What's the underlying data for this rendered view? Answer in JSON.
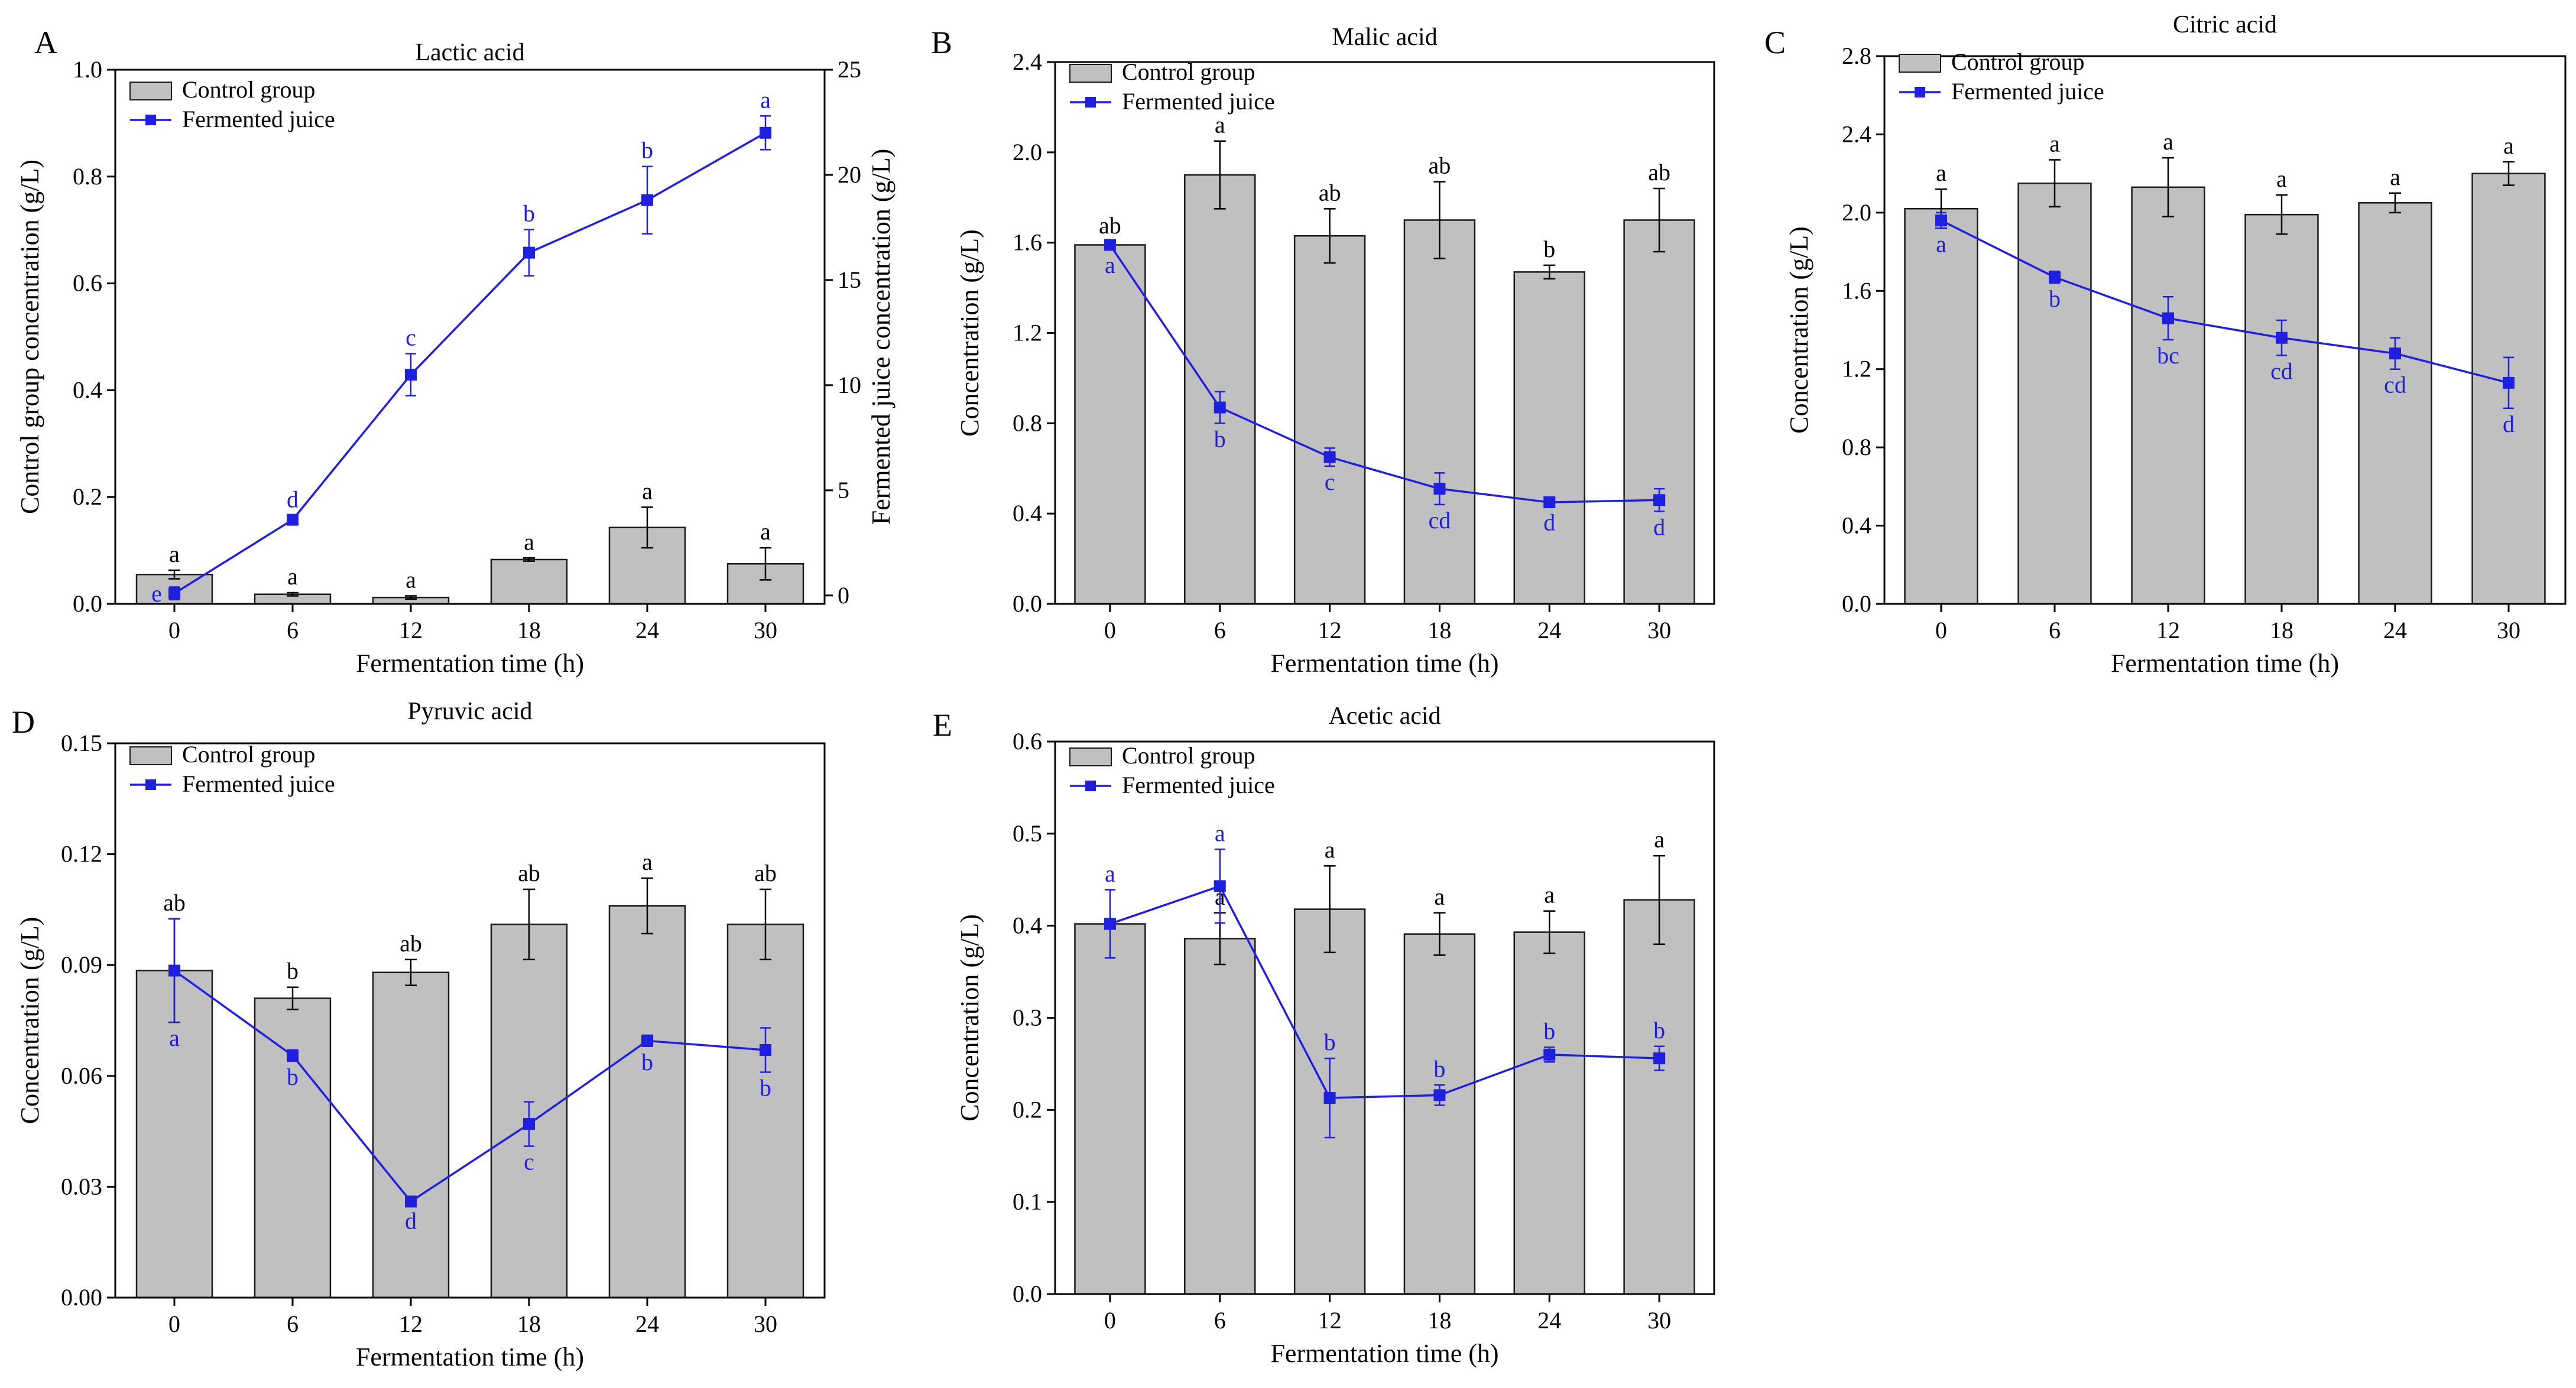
{
  "figure": {
    "series_names": [
      "Control group",
      "Fermented juice"
    ],
    "colors": {
      "bar_fill": "#c0c0c0",
      "bar_stroke": "#1a1a1a",
      "line": "#1f1fe0",
      "axis": "#000000",
      "control_letter": "#000000",
      "juice_letter": "#1f1fe0"
    }
  },
  "chart_data": [
    {
      "id": "A",
      "type": "bar+line",
      "panel_label": "A",
      "title": "Lactic acid",
      "xlabel": "Fermentation time (h)",
      "ylabel": "Control group concentration (g/L)",
      "y2label": "Fermented juice concentration (g/L)",
      "categories": [
        "0",
        "6",
        "12",
        "18",
        "24",
        "30"
      ],
      "ylim": [
        0,
        1.0
      ],
      "yticks": [
        "0.0",
        "0.2",
        "0.4",
        "0.6",
        "0.8",
        "1.0"
      ],
      "y2lim": [
        -0.4,
        25
      ],
      "y2ticks": [
        "0",
        "5",
        "10",
        "15",
        "20",
        "25"
      ],
      "series": [
        {
          "name": "Control group",
          "kind": "bar",
          "axis": "left",
          "values": [
            0.055,
            0.018,
            0.012,
            0.083,
            0.143,
            0.075
          ],
          "errors": [
            0.008,
            0.003,
            0.003,
            0.003,
            0.038,
            0.03
          ],
          "letters": [
            "a",
            "a",
            "a",
            "a",
            "a",
            "a"
          ]
        },
        {
          "name": "Fermented juice",
          "kind": "line",
          "axis": "right",
          "values": [
            0.1,
            3.6,
            10.5,
            16.3,
            18.8,
            22.0
          ],
          "errors": [
            0.3,
            0.2,
            1.0,
            1.1,
            1.6,
            0.8
          ],
          "letters": [
            "e",
            "d",
            "c",
            "b",
            "b",
            "a"
          ],
          "letter_pos": [
            "inside",
            "above",
            "above",
            "above",
            "above",
            "above"
          ]
        }
      ]
    },
    {
      "id": "B",
      "type": "bar+line",
      "panel_label": "B",
      "title": "Malic acid",
      "xlabel": "Fermentation time (h)",
      "ylabel": "Concentration (g/L)",
      "categories": [
        "0",
        "6",
        "12",
        "18",
        "24",
        "30"
      ],
      "ylim": [
        0,
        2.4
      ],
      "yticks": [
        "0.0",
        "0.4",
        "0.8",
        "1.2",
        "1.6",
        "2.0",
        "2.4"
      ],
      "series": [
        {
          "name": "Control group",
          "kind": "bar",
          "values": [
            1.59,
            1.9,
            1.63,
            1.7,
            1.47,
            1.7
          ],
          "errors": [
            0.015,
            0.15,
            0.12,
            0.17,
            0.03,
            0.14
          ],
          "letters": [
            "ab",
            "a",
            "ab",
            "ab",
            "b",
            "ab"
          ]
        },
        {
          "name": "Fermented juice",
          "kind": "line",
          "values": [
            1.59,
            0.87,
            0.65,
            0.51,
            0.45,
            0.46
          ],
          "errors": [
            0.02,
            0.07,
            0.04,
            0.07,
            0.02,
            0.05
          ],
          "letters": [
            "a",
            "b",
            "c",
            "cd",
            "d",
            "d"
          ],
          "letter_pos": [
            "below",
            "below",
            "below",
            "below",
            "below",
            "below"
          ]
        }
      ]
    },
    {
      "id": "C",
      "type": "bar+line",
      "panel_label": "C",
      "title": "Citric acid",
      "xlabel": "Fermentation time (h)",
      "ylabel": "Concentration (g/L)",
      "categories": [
        "0",
        "6",
        "12",
        "18",
        "24",
        "30"
      ],
      "ylim": [
        0,
        2.8
      ],
      "yticks": [
        "0.0",
        "0.4",
        "0.8",
        "1.2",
        "1.6",
        "2.0",
        "2.4",
        "2.8"
      ],
      "series": [
        {
          "name": "Control group",
          "kind": "bar",
          "values": [
            2.02,
            2.15,
            2.13,
            1.99,
            2.05,
            2.2
          ],
          "errors": [
            0.1,
            0.12,
            0.15,
            0.1,
            0.05,
            0.06
          ],
          "letters": [
            "a",
            "a",
            "a",
            "a",
            "a",
            "a"
          ]
        },
        {
          "name": "Fermented juice",
          "kind": "line",
          "values": [
            1.96,
            1.67,
            1.46,
            1.36,
            1.28,
            1.13
          ],
          "errors": [
            0.04,
            0.03,
            0.11,
            0.09,
            0.08,
            0.13
          ],
          "letters": [
            "a",
            "b",
            "bc",
            "cd",
            "cd",
            "d"
          ],
          "letter_pos": [
            "below",
            "below",
            "below",
            "below",
            "below",
            "below"
          ]
        }
      ]
    },
    {
      "id": "D",
      "type": "bar+line",
      "panel_label": "D",
      "title": "Pyruvic acid",
      "xlabel": "Fermentation time (h)",
      "ylabel": "Concentration (g/L)",
      "categories": [
        "0",
        "6",
        "12",
        "18",
        "24",
        "30"
      ],
      "ylim": [
        0,
        0.15
      ],
      "yticks": [
        "0.00",
        "0.03",
        "0.06",
        "0.09",
        "0.12",
        "0.15"
      ],
      "series": [
        {
          "name": "Control group",
          "kind": "bar",
          "values": [
            0.0885,
            0.081,
            0.088,
            0.101,
            0.106,
            0.101
          ],
          "errors": [
            0.014,
            0.003,
            0.0035,
            0.0095,
            0.0075,
            0.0095
          ],
          "letters": [
            "ab",
            "b",
            "ab",
            "ab",
            "a",
            "ab"
          ]
        },
        {
          "name": "Fermented juice",
          "kind": "line",
          "values": [
            0.0885,
            0.0655,
            0.026,
            0.047,
            0.0695,
            0.067
          ],
          "errors": [
            0.014,
            0.0015,
            0.001,
            0.006,
            0.0015,
            0.006
          ],
          "letters": [
            "a",
            "b",
            "d",
            "c",
            "b",
            "b"
          ],
          "letter_pos": [
            "below",
            "below",
            "below",
            "below",
            "below",
            "below"
          ]
        }
      ]
    },
    {
      "id": "E",
      "type": "bar+line",
      "panel_label": "E",
      "title": "Acetic acid",
      "xlabel": "Fermentation time (h)",
      "ylabel": "Concentration (g/L)",
      "categories": [
        "0",
        "6",
        "12",
        "18",
        "24",
        "30"
      ],
      "ylim": [
        0,
        0.6
      ],
      "yticks": [
        "0.0",
        "0.1",
        "0.2",
        "0.3",
        "0.4",
        "0.5",
        "0.6"
      ],
      "series": [
        {
          "name": "Control group",
          "kind": "bar",
          "values": [
            0.402,
            0.386,
            0.418,
            0.391,
            0.393,
            0.428
          ],
          "errors": [
            0.0,
            0.028,
            0.047,
            0.023,
            0.023,
            0.048
          ],
          "letters": [
            "",
            "a",
            "a",
            "a",
            "a",
            "a"
          ]
        },
        {
          "name": "Fermented juice",
          "kind": "line",
          "values": [
            0.402,
            0.443,
            0.213,
            0.216,
            0.26,
            0.256
          ],
          "errors": [
            0.037,
            0.04,
            0.043,
            0.011,
            0.008,
            0.013
          ],
          "letters": [
            "a",
            "a",
            "b",
            "b",
            "b",
            "b"
          ],
          "letter_pos": [
            "above",
            "above",
            "above",
            "above",
            "above",
            "above"
          ]
        }
      ]
    }
  ]
}
